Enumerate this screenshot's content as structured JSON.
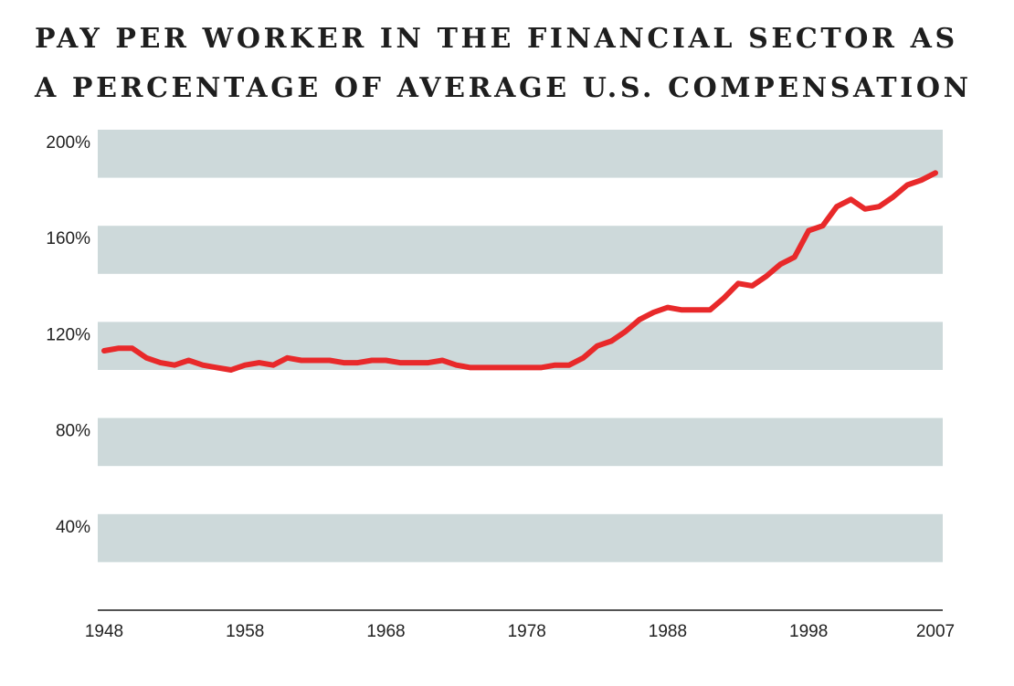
{
  "chart_data": {
    "type": "line",
    "title_lines": [
      "PAY PER WORKER IN THE FINANCIAL SECTOR AS",
      "A PERCENTAGE OF AVERAGE U.S. COMPENSATION"
    ],
    "x_tick_labels": [
      "1948",
      "1958",
      "1968",
      "1978",
      "1988",
      "1998",
      "2007"
    ],
    "y_tick_labels": [
      "200%",
      "160%",
      "120%",
      "80%",
      "40%"
    ],
    "y_tick_values": [
      200,
      160,
      120,
      80,
      40
    ],
    "y_bands": [
      [
        180,
        200
      ],
      [
        140,
        160
      ],
      [
        100,
        120
      ],
      [
        60,
        80
      ],
      [
        20,
        40
      ]
    ],
    "xlim": [
      1948,
      2007
    ],
    "ylim": [
      0,
      200
    ],
    "grid": "horizontal bands",
    "series": [
      {
        "name": "",
        "color": "#e8292a",
        "x": [
          1948,
          1949,
          1950,
          1951,
          1952,
          1953,
          1954,
          1955,
          1956,
          1957,
          1958,
          1959,
          1960,
          1961,
          1962,
          1963,
          1964,
          1965,
          1966,
          1967,
          1968,
          1969,
          1970,
          1971,
          1972,
          1973,
          1974,
          1975,
          1976,
          1977,
          1978,
          1979,
          1980,
          1981,
          1982,
          1983,
          1984,
          1985,
          1986,
          1987,
          1988,
          1989,
          1990,
          1991,
          1992,
          1993,
          1994,
          1995,
          1996,
          1997,
          1998,
          1999,
          2000,
          2001,
          2002,
          2003,
          2004,
          2005,
          2006,
          2007
        ],
        "values": [
          108,
          109,
          109,
          105,
          103,
          102,
          104,
          102,
          101,
          100,
          102,
          103,
          102,
          105,
          104,
          104,
          104,
          103,
          103,
          104,
          104,
          103,
          103,
          103,
          104,
          102,
          101,
          101,
          101,
          101,
          101,
          101,
          102,
          102,
          105,
          110,
          112,
          116,
          121,
          124,
          126,
          125,
          125,
          125,
          130,
          136,
          135,
          139,
          144,
          147,
          158,
          160,
          168,
          171,
          167,
          168,
          172,
          177,
          179,
          182
        ]
      }
    ]
  }
}
